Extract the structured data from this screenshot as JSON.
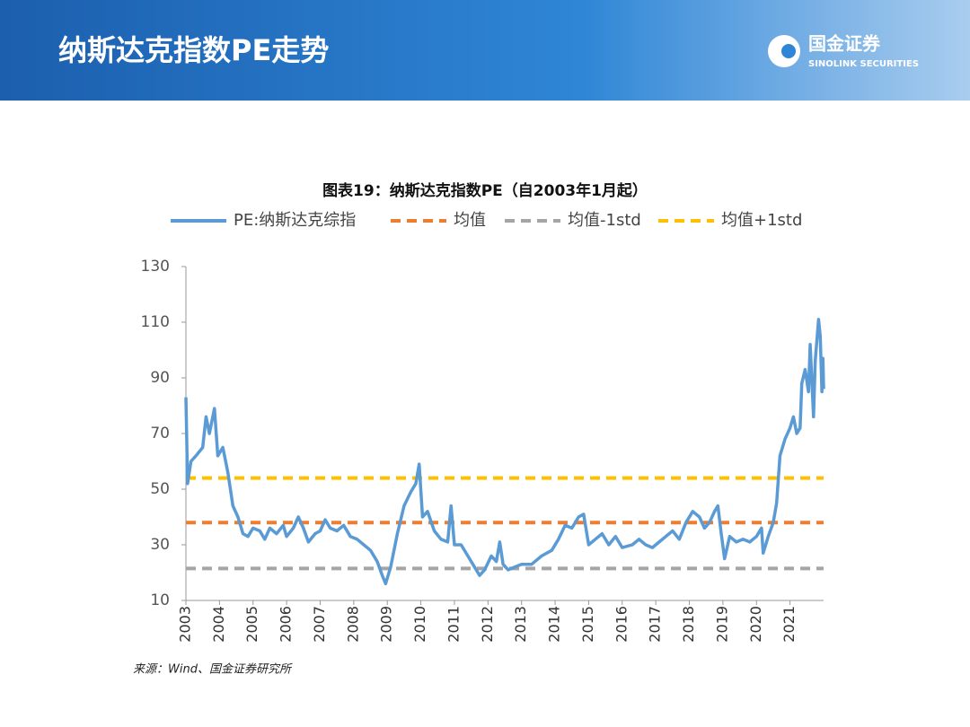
{
  "header": {
    "title": "纳斯达克指数PE走势",
    "logo_cn": "国金证券",
    "logo_en": "SINOLINK SECURITIES"
  },
  "chart_data": {
    "type": "line",
    "title": "图表19：纳斯达克指数PE（自2003年1月起）",
    "source": "来源：Wind、国金证券研究所",
    "xlim": [
      2003,
      2022
    ],
    "xticks": [
      2003,
      2004,
      2005,
      2006,
      2007,
      2008,
      2009,
      2010,
      2011,
      2012,
      2013,
      2014,
      2015,
      2016,
      2017,
      2018,
      2019,
      2020,
      2021
    ],
    "ylim": [
      10,
      130
    ],
    "yticks": [
      10,
      30,
      50,
      70,
      90,
      110,
      130
    ],
    "grid": false,
    "series": [
      {
        "name": "PE:纳斯达克综指",
        "color": "#5b9bd5",
        "dash": false,
        "x": [
          2003.0,
          2003.05,
          2003.15,
          2003.3,
          2003.5,
          2003.6,
          2003.7,
          2003.85,
          2003.95,
          2004.1,
          2004.25,
          2004.4,
          2004.55,
          2004.7,
          2004.85,
          2005.0,
          2005.2,
          2005.35,
          2005.5,
          2005.7,
          2005.9,
          2006.0,
          2006.2,
          2006.35,
          2006.5,
          2006.65,
          2006.85,
          2007.0,
          2007.15,
          2007.3,
          2007.5,
          2007.7,
          2007.9,
          2008.1,
          2008.3,
          2008.5,
          2008.7,
          2008.85,
          2008.95,
          2009.1,
          2009.3,
          2009.5,
          2009.7,
          2009.85,
          2009.95,
          2010.05,
          2010.2,
          2010.4,
          2010.6,
          2010.8,
          2010.9,
          2011.0,
          2011.2,
          2011.4,
          2011.6,
          2011.75,
          2011.9,
          2012.1,
          2012.25,
          2012.35,
          2012.45,
          2012.6,
          2012.8,
          2013.0,
          2013.3,
          2013.6,
          2013.9,
          2014.1,
          2014.3,
          2014.5,
          2014.7,
          2014.85,
          2015.0,
          2015.2,
          2015.4,
          2015.6,
          2015.8,
          2016.0,
          2016.3,
          2016.5,
          2016.7,
          2016.9,
          2017.1,
          2017.3,
          2017.5,
          2017.7,
          2017.9,
          2018.1,
          2018.3,
          2018.45,
          2018.6,
          2018.75,
          2018.85,
          2018.95,
          2019.05,
          2019.2,
          2019.4,
          2019.6,
          2019.8,
          2020.0,
          2020.15,
          2020.2,
          2020.35,
          2020.5,
          2020.6,
          2020.7,
          2020.85,
          2021.0,
          2021.1,
          2021.2,
          2021.3,
          2021.35,
          2021.45,
          2021.55,
          2021.6,
          2021.7,
          2021.75,
          2021.85,
          2021.9,
          2021.95,
          2021.98,
          2022.0
        ],
        "values": [
          83,
          52,
          60,
          62,
          65,
          76,
          70,
          79,
          62,
          65,
          56,
          44,
          40,
          34,
          33,
          36,
          35,
          32,
          36,
          34,
          37,
          33,
          36,
          40,
          36,
          31,
          34,
          35,
          39,
          36,
          35,
          37,
          33,
          32,
          30,
          28,
          24,
          19,
          16,
          22,
          34,
          44,
          49,
          52,
          59,
          40,
          42,
          35,
          32,
          31,
          44,
          30,
          30,
          26,
          22,
          19,
          21,
          26,
          24,
          31,
          23,
          21,
          22,
          23,
          23,
          26,
          28,
          32,
          37,
          36,
          40,
          41,
          30,
          32,
          34,
          30,
          33,
          29,
          30,
          32,
          30,
          29,
          31,
          33,
          35,
          32,
          38,
          42,
          40,
          36,
          38,
          42,
          44,
          34,
          25,
          33,
          31,
          32,
          31,
          33,
          36,
          27,
          33,
          38,
          45,
          62,
          68,
          72,
          76,
          70,
          72,
          88,
          93,
          85,
          102,
          76,
          96,
          111,
          105,
          85,
          97,
          86
        ]
      },
      {
        "name": "均值",
        "color": "#ed7d31",
        "dash": true,
        "x": [
          2003,
          2022
        ],
        "values": [
          38,
          38
        ]
      },
      {
        "name": "均值-1std",
        "color": "#a5a5a5",
        "dash": true,
        "x": [
          2003,
          2022
        ],
        "values": [
          21.5,
          21.5
        ]
      },
      {
        "name": "均值+1std",
        "color": "#ffc000",
        "dash": true,
        "x": [
          2003,
          2022
        ],
        "values": [
          54,
          54
        ]
      }
    ]
  }
}
